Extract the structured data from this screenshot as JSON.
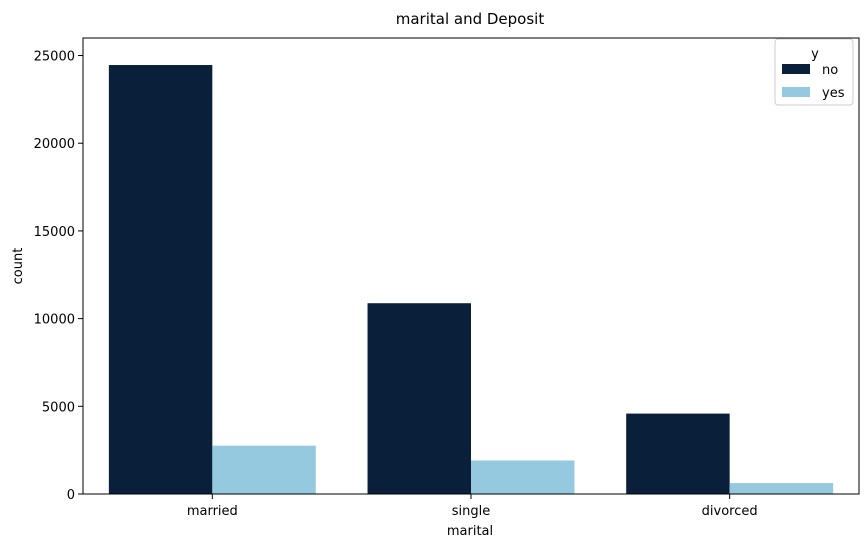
{
  "chart_data": {
    "type": "bar",
    "title": "marital and Deposit",
    "xlabel": "marital",
    "ylabel": "count",
    "categories": [
      "married",
      "single",
      "divorced"
    ],
    "series": [
      {
        "name": "no",
        "values": [
          24459,
          10878,
          4585
        ],
        "color": "#0a1f3a"
      },
      {
        "name": "yes",
        "values": [
          2755,
          1912,
          622
        ],
        "color": "#94c9df"
      }
    ],
    "ylim": [
      0,
      26000
    ],
    "yticks": [
      0,
      5000,
      10000,
      15000,
      20000,
      25000
    ],
    "legend": {
      "title": "y",
      "placement": "top-right"
    },
    "grid": false
  }
}
